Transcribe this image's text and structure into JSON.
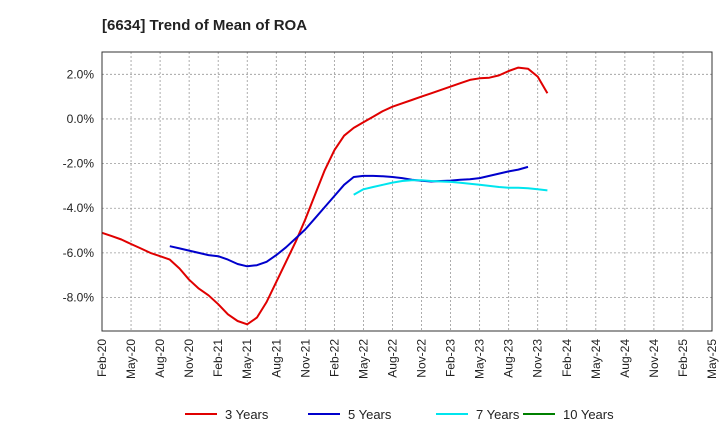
{
  "chart_data": {
    "type": "line",
    "title": "[6634]  Trend of Mean of ROA",
    "xlabel": "",
    "ylabel": "",
    "ylim": [
      -9.5,
      3.0
    ],
    "grid": true,
    "legend_position": "bottom",
    "x_ticks": [
      "Feb-20",
      "May-20",
      "Aug-20",
      "Nov-20",
      "Feb-21",
      "May-21",
      "Aug-21",
      "Nov-21",
      "Feb-22",
      "May-22",
      "Aug-22",
      "Nov-22",
      "Feb-23",
      "May-23",
      "Aug-23",
      "Nov-23",
      "Feb-24",
      "May-24",
      "Aug-24",
      "Nov-24",
      "Feb-25",
      "May-25"
    ],
    "y_ticks": [
      2.0,
      0.0,
      -2.0,
      -4.0,
      -6.0,
      -8.0
    ],
    "y_tick_labels": [
      "2.0%",
      "0.0%",
      "-2.0%",
      "-4.0%",
      "-6.0%",
      "-8.0%"
    ],
    "series": [
      {
        "name": "3 Years",
        "color": "#e00000",
        "start_index": 0,
        "values": [
          -5.1,
          -5.25,
          -5.4,
          -5.6,
          -5.8,
          -6.0,
          -6.15,
          -6.3,
          -6.7,
          -7.2,
          -7.6,
          -7.9,
          -8.3,
          -8.75,
          -9.05,
          -9.2,
          -8.9,
          -8.2,
          -7.3,
          -6.4,
          -5.5,
          -4.5,
          -3.4,
          -2.3,
          -1.4,
          -0.75,
          -0.4,
          -0.15,
          0.1,
          0.35,
          0.55,
          0.7,
          0.85,
          1.0,
          1.15,
          1.3,
          1.45,
          1.6,
          1.75,
          1.82,
          1.85,
          1.95,
          2.15,
          2.3,
          2.25,
          1.9,
          1.15
        ]
      },
      {
        "name": "5 Years",
        "color": "#0000cc",
        "start_index": 7,
        "values": [
          -5.7,
          -5.8,
          -5.9,
          -6.0,
          -6.1,
          -6.15,
          -6.3,
          -6.5,
          -6.6,
          -6.55,
          -6.4,
          -6.1,
          -5.75,
          -5.35,
          -4.95,
          -4.45,
          -3.95,
          -3.45,
          -2.95,
          -2.6,
          -2.55,
          -2.55,
          -2.57,
          -2.6,
          -2.65,
          -2.72,
          -2.77,
          -2.8,
          -2.78,
          -2.76,
          -2.72,
          -2.7,
          -2.65,
          -2.55,
          -2.45,
          -2.35,
          -2.27,
          -2.15
        ]
      },
      {
        "name": "7 Years",
        "color": "#00e5ee",
        "start_index": 26,
        "values": [
          -3.4,
          -3.15,
          -3.05,
          -2.95,
          -2.85,
          -2.78,
          -2.75,
          -2.75,
          -2.78,
          -2.8,
          -2.82,
          -2.86,
          -2.9,
          -2.95,
          -3.0,
          -3.05,
          -3.08,
          -3.08,
          -3.1,
          -3.15,
          -3.2
        ]
      },
      {
        "name": "10 Years",
        "color": "#008000",
        "start_index": 0,
        "values": []
      }
    ]
  }
}
